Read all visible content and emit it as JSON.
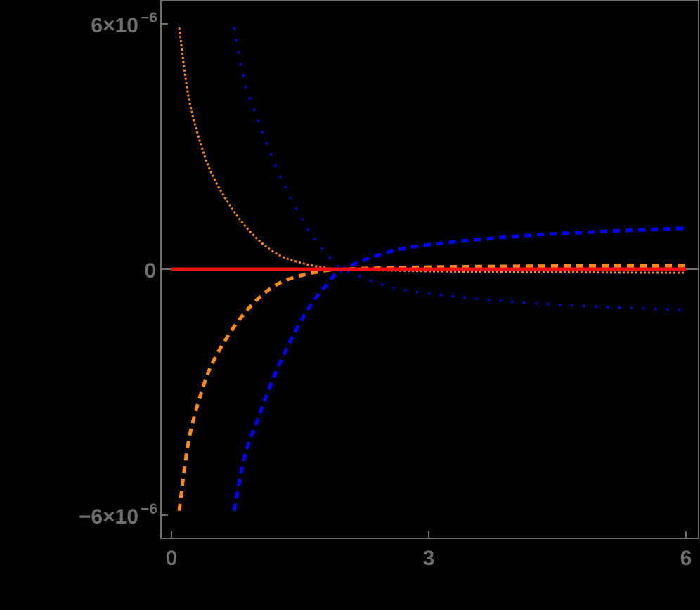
{
  "chart_data": {
    "type": "line",
    "title": "",
    "xlabel": "",
    "ylabel": "",
    "xlim": [
      0,
      6.1
    ],
    "ylim": [
      -6.5e-06,
      6.5e-06
    ],
    "grid": false,
    "legend": null,
    "background": "#000000",
    "axis_color": "#6e6e6e",
    "x_ticks": [
      {
        "value": 0,
        "label": "0"
      },
      {
        "value": 3,
        "label": "3"
      },
      {
        "value": 6,
        "label": "6"
      }
    ],
    "y_ticks": [
      {
        "value": 6e-06,
        "mantissa": "6×10",
        "exponent": "−6"
      },
      {
        "value": 0,
        "mantissa": "0",
        "exponent": ""
      },
      {
        "value": -6e-06,
        "mantissa": "−6×10",
        "exponent": "−6"
      }
    ],
    "series": [
      {
        "name": "orange-dotted",
        "color": "#ff8c1a",
        "style": "dotted",
        "x": [
          0.09,
          0.2,
          0.35,
          0.5,
          0.75,
          1.0,
          1.25,
          1.5,
          1.75,
          2.0,
          3.0,
          4.0,
          5.0,
          6.0
        ],
        "y": [
          5.9e-06,
          4.2e-06,
          3e-06,
          2.2e-06,
          1.35e-06,
          7.4e-07,
          3.5e-07,
          1.6e-07,
          5e-08,
          0.0,
          -5e-08,
          -7e-08,
          -8e-08,
          -9e-08
        ]
      },
      {
        "name": "orange-dashed",
        "color": "#ff8c1a",
        "style": "dashed",
        "x": [
          0.09,
          0.2,
          0.35,
          0.5,
          0.75,
          1.0,
          1.25,
          1.5,
          1.75,
          2.0,
          3.0,
          4.0,
          5.0,
          6.0
        ],
        "y": [
          -5.9e-06,
          -4.2e-06,
          -3e-06,
          -2.2e-06,
          -1.35e-06,
          -7.4e-07,
          -3.5e-07,
          -1.6e-07,
          -5e-08,
          0.0,
          5e-08,
          7e-08,
          8e-08,
          9e-08
        ]
      },
      {
        "name": "blue-dotted",
        "color": "#0000ff",
        "style": "dotted",
        "x": [
          0.73,
          0.85,
          1.0,
          1.2,
          1.4,
          1.6,
          1.8,
          2.0,
          2.5,
          3.0,
          4.0,
          5.0,
          6.0
        ],
        "y": [
          5.9e-06,
          4.6e-06,
          3.7e-06,
          2.6e-06,
          1.7e-06,
          9.5e-07,
          4e-07,
          0.0,
          -4e-07,
          -6e-07,
          -8e-07,
          -9.2e-07,
          -1e-06
        ]
      },
      {
        "name": "blue-dashed",
        "color": "#0000ff",
        "style": "dashed",
        "x": [
          0.73,
          0.85,
          1.0,
          1.2,
          1.4,
          1.6,
          1.8,
          2.0,
          2.5,
          3.0,
          4.0,
          5.0,
          6.0
        ],
        "y": [
          -5.9e-06,
          -4.6e-06,
          -3.7e-06,
          -2.6e-06,
          -1.7e-06,
          -9.5e-07,
          -4e-07,
          0.0,
          4e-07,
          6e-07,
          8e-07,
          9.2e-07,
          1e-06
        ]
      },
      {
        "name": "red-solid",
        "color": "#ee1111",
        "style": "solid",
        "x": [
          0,
          6
        ],
        "y": [
          0,
          0
        ]
      }
    ]
  }
}
